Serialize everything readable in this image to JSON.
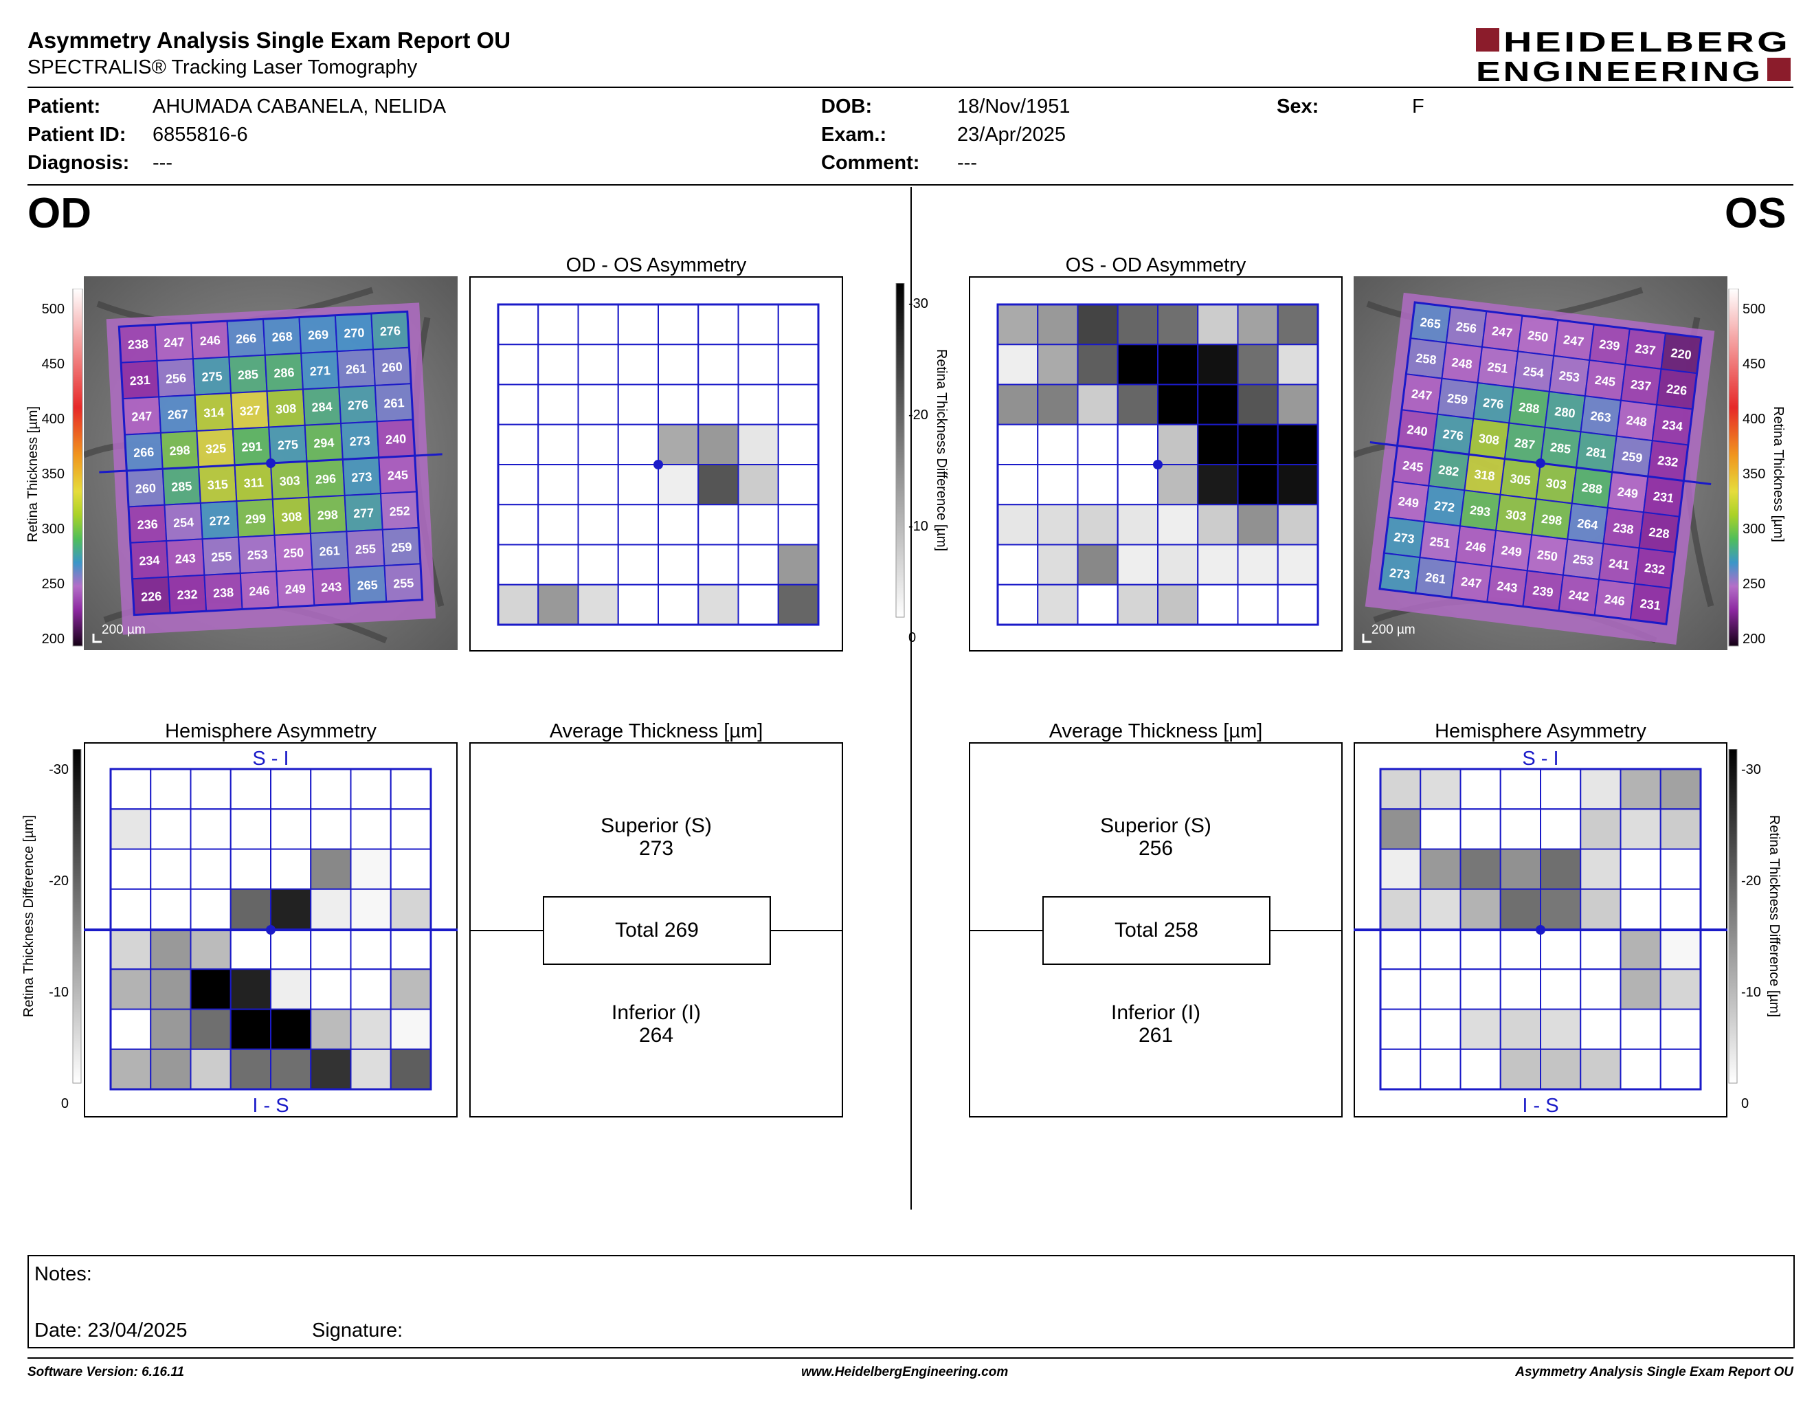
{
  "header": {
    "title": "Asymmetry Analysis Single Exam Report OU",
    "subtitle": "SPECTRALIS® Tracking Laser Tomography",
    "logo_line1": "HEIDELBERG",
    "logo_line2": "ENGINEERING",
    "logo_color": "#8b1c2b"
  },
  "patient": {
    "patient_label": "Patient:",
    "patient": "AHUMADA CABANELA, NELIDA",
    "id_label": "Patient ID:",
    "id": "6855816-6",
    "diagnosis_label": "Diagnosis:",
    "diagnosis": "---",
    "dob_label": "DOB:",
    "dob": "18/Nov/1951",
    "exam_label": "Exam.:",
    "exam": "23/Apr/2025",
    "comment_label": "Comment:",
    "comment": "---",
    "sex_label": "Sex:",
    "sex": "F"
  },
  "eyes": {
    "od": "OD",
    "os": "OS"
  },
  "panels": {
    "od_os_asym": "OD - OS Asymmetry",
    "os_od_asym": "OS - OD Asymmetry",
    "hemi": "Hemisphere Asymmetry",
    "avg": "Average Thickness [µm]",
    "s_i": "S - I",
    "i_s": "I - S",
    "scale_200um": "200 µm"
  },
  "thickness_scale": {
    "label": "Retina Thickness [µm]",
    "ticks": [
      "500",
      "450",
      "400",
      "350",
      "300",
      "250",
      "200"
    ]
  },
  "difference_scale": {
    "label": "Retina Thickness Difference [µm]",
    "ticks": [
      "-30",
      "-20",
      "-10",
      "0"
    ]
  },
  "od_grid": [
    [
      238,
      247,
      246,
      266,
      268,
      269,
      270,
      276
    ],
    [
      231,
      256,
      275,
      285,
      286,
      271,
      261,
      260
    ],
    [
      247,
      267,
      314,
      327,
      308,
      284,
      276,
      261
    ],
    [
      266,
      298,
      325,
      291,
      275,
      294,
      273,
      240
    ],
    [
      260,
      285,
      315,
      311,
      303,
      296,
      273,
      245
    ],
    [
      236,
      254,
      272,
      299,
      308,
      298,
      277,
      252
    ],
    [
      234,
      243,
      255,
      253,
      250,
      261,
      255,
      259
    ],
    [
      226,
      232,
      238,
      246,
      249,
      243,
      265,
      255
    ]
  ],
  "os_grid": [
    [
      265,
      256,
      247,
      250,
      247,
      239,
      237,
      220
    ],
    [
      258,
      248,
      251,
      254,
      253,
      245,
      237,
      226
    ],
    [
      247,
      259,
      276,
      288,
      280,
      263,
      248,
      234
    ],
    [
      240,
      276,
      308,
      287,
      285,
      281,
      259,
      232
    ],
    [
      245,
      282,
      318,
      305,
      303,
      288,
      249,
      231
    ],
    [
      249,
      272,
      293,
      303,
      298,
      264,
      238,
      228
    ],
    [
      273,
      251,
      246,
      249,
      250,
      253,
      241,
      232
    ],
    [
      273,
      261,
      247,
      243,
      239,
      242,
      246,
      231
    ]
  ],
  "od_asym_gray": [
    [
      0,
      0,
      0,
      0,
      0,
      0,
      0,
      0
    ],
    [
      0,
      0,
      0,
      0,
      0,
      0,
      0,
      0
    ],
    [
      0,
      0,
      0,
      0,
      0,
      0,
      0,
      0
    ],
    [
      0,
      0,
      0,
      0,
      10,
      12,
      3,
      0
    ],
    [
      0,
      0,
      0,
      0,
      2,
      20,
      6,
      0
    ],
    [
      0,
      0,
      0,
      0,
      0,
      0,
      0,
      0
    ],
    [
      0,
      0,
      0,
      0,
      0,
      0,
      0,
      12
    ],
    [
      5,
      12,
      4,
      0,
      0,
      4,
      0,
      18
    ]
  ],
  "os_asym_gray": [
    [
      10,
      12,
      22,
      18,
      17,
      6,
      11,
      17
    ],
    [
      2,
      10,
      19,
      30,
      30,
      28,
      17,
      4
    ],
    [
      13,
      15,
      6,
      18,
      30,
      30,
      20,
      12
    ],
    [
      0,
      0,
      0,
      0,
      7,
      30,
      30,
      30
    ],
    [
      0,
      0,
      0,
      0,
      8,
      27,
      30,
      28
    ],
    [
      3,
      4,
      5,
      3,
      2,
      6,
      13,
      6
    ],
    [
      0,
      4,
      14,
      2,
      3,
      2,
      2,
      2
    ],
    [
      0,
      4,
      0,
      5,
      7,
      0,
      0,
      0
    ]
  ],
  "od_hemi_gray": [
    [
      0,
      0,
      0,
      0,
      0,
      0,
      0,
      0
    ],
    [
      3,
      0,
      0,
      0,
      0,
      0,
      0,
      0
    ],
    [
      0,
      0,
      0,
      0,
      0,
      14,
      1,
      0
    ],
    [
      0,
      0,
      0,
      18,
      26,
      2,
      1,
      5
    ],
    [
      5,
      12,
      8,
      0,
      0,
      0,
      0,
      0
    ],
    [
      9,
      12,
      30,
      26,
      2,
      0,
      0,
      8
    ],
    [
      0,
      12,
      17,
      30,
      30,
      8,
      4,
      1
    ],
    [
      9,
      12,
      6,
      17,
      17,
      24,
      4,
      19
    ]
  ],
  "os_hemi_gray": [
    [
      5,
      4,
      0,
      0,
      0,
      3,
      9,
      11
    ],
    [
      13,
      0,
      0,
      0,
      0,
      6,
      4,
      6
    ],
    [
      2,
      12,
      16,
      13,
      17,
      4,
      0,
      0
    ],
    [
      5,
      4,
      9,
      17,
      16,
      6,
      0,
      0
    ],
    [
      0,
      0,
      0,
      0,
      0,
      0,
      9,
      1
    ],
    [
      0,
      0,
      0,
      0,
      0,
      0,
      9,
      5
    ],
    [
      0,
      0,
      4,
      5,
      4,
      0,
      0,
      0
    ],
    [
      0,
      0,
      0,
      7,
      7,
      6,
      0,
      0
    ]
  ],
  "od_avg": {
    "superior_label": "Superior (S)",
    "superior": "273",
    "total": "Total 269",
    "inferior_label": "Inferior (I)",
    "inferior": "264"
  },
  "os_avg": {
    "superior_label": "Superior (S)",
    "superior": "256",
    "total": "Total 258",
    "inferior_label": "Inferior (I)",
    "inferior": "261"
  },
  "notes": {
    "notes_label": "Notes:",
    "date_label": "Date: 23/04/2025",
    "signature_label": "Signature:"
  },
  "footer": {
    "software": "Software Version: 6.16.11",
    "website": "www.HeidelbergEngineering.com",
    "report": "Asymmetry Analysis Single Exam Report OU"
  }
}
